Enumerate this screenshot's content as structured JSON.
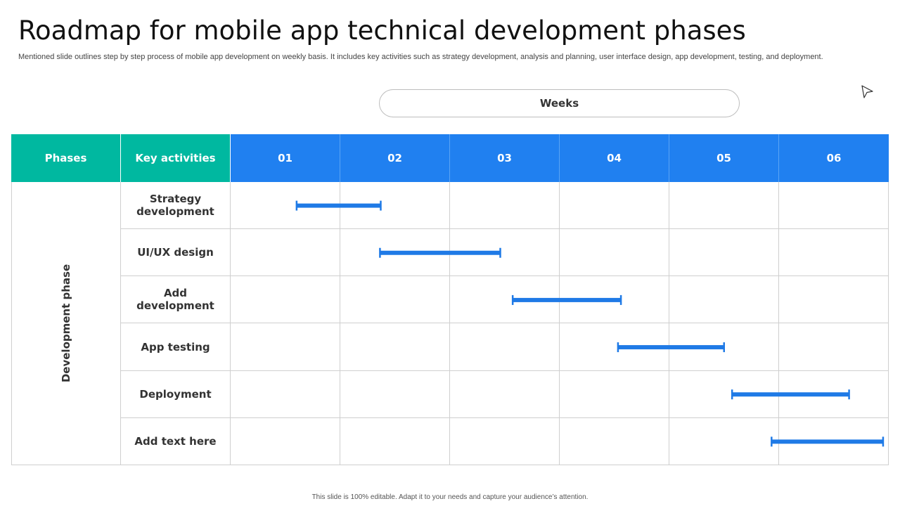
{
  "title": "Roadmap for mobile app technical development phases",
  "subtitle": "Mentioned slide outlines step by step process of mobile app development on weekly basis. It includes key activities such as strategy development, analysis and planning, user interface design, app development, testing, and deployment.",
  "weeks_label": "Weeks",
  "table": {
    "phases_header": "Phases",
    "activities_header": "Key activities",
    "weeks": [
      "01",
      "02",
      "03",
      "04",
      "05",
      "06"
    ],
    "phase": "Development phase",
    "activities": [
      {
        "label": "Strategy development",
        "start_week": 0.6,
        "end_week": 1.37
      },
      {
        "label": "UI/UX design",
        "start_week": 1.36,
        "end_week": 2.46
      },
      {
        "label": "Add development",
        "start_week": 2.57,
        "end_week": 3.56
      },
      {
        "label": "App testing",
        "start_week": 3.53,
        "end_week": 4.5
      },
      {
        "label": "Deployment",
        "start_week": 4.57,
        "end_week": 5.64
      },
      {
        "label": "Add text here",
        "start_week": 4.93,
        "end_week": 5.95
      }
    ]
  },
  "colors": {
    "teal": "#00b8a0",
    "blue": "#2080f0",
    "bar": "#1f7ae6"
  },
  "footer": "This slide is 100% editable. Adapt it to your needs and capture your audience’s attention."
}
